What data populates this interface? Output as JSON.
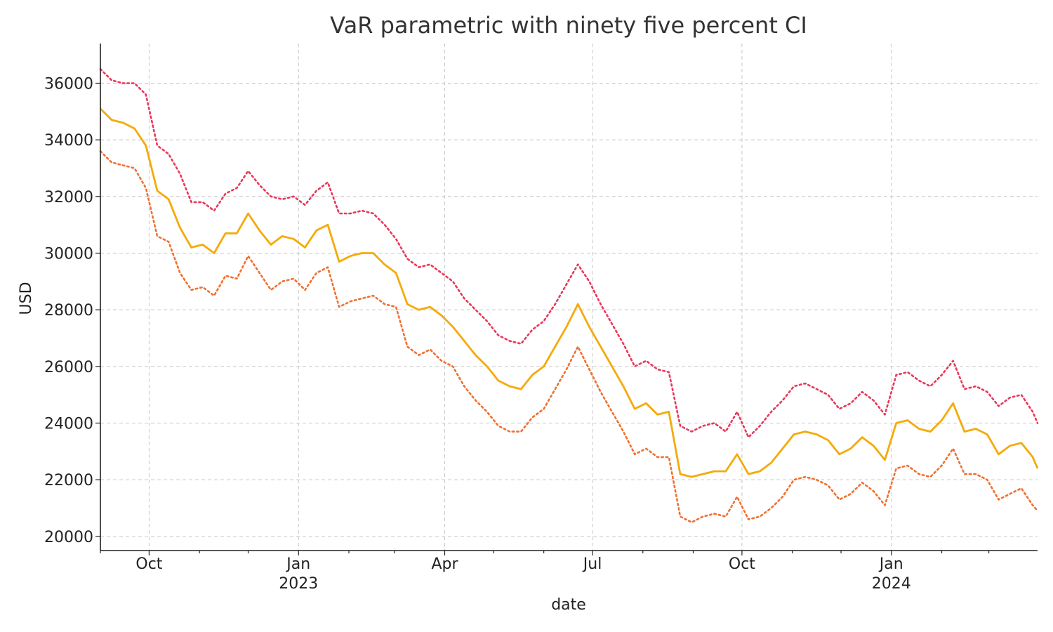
{
  "chart_data": {
    "type": "line",
    "title": "VaR parametric with ninety five percent CI",
    "xlabel": "date",
    "ylabel": "USD",
    "grid": true,
    "xlim": [
      "2022-09-01",
      "2024-03-31"
    ],
    "ylim": [
      19500,
      37400
    ],
    "y_ticks": [
      20000,
      22000,
      24000,
      26000,
      28000,
      30000,
      32000,
      34000,
      36000
    ],
    "x_ticks": [
      {
        "date": "2022-10-01",
        "label": "Oct",
        "sublabel": ""
      },
      {
        "date": "2023-01-01",
        "label": "Jan",
        "sublabel": "2023"
      },
      {
        "date": "2023-04-01",
        "label": "Apr",
        "sublabel": ""
      },
      {
        "date": "2023-07-01",
        "label": "Jul",
        "sublabel": ""
      },
      {
        "date": "2023-10-01",
        "label": "Oct",
        "sublabel": ""
      },
      {
        "date": "2024-01-01",
        "label": "Jan",
        "sublabel": "2024"
      }
    ],
    "x": [
      "2022-09-01",
      "2022-09-08",
      "2022-09-15",
      "2022-09-22",
      "2022-09-29",
      "2022-10-06",
      "2022-10-13",
      "2022-10-20",
      "2022-10-27",
      "2022-11-03",
      "2022-11-10",
      "2022-11-17",
      "2022-11-24",
      "2022-12-01",
      "2022-12-08",
      "2022-12-15",
      "2022-12-22",
      "2022-12-29",
      "2023-01-05",
      "2023-01-12",
      "2023-01-19",
      "2023-01-26",
      "2023-02-02",
      "2023-02-09",
      "2023-02-16",
      "2023-02-23",
      "2023-03-02",
      "2023-03-09",
      "2023-03-16",
      "2023-03-23",
      "2023-03-30",
      "2023-04-06",
      "2023-04-13",
      "2023-04-20",
      "2023-04-27",
      "2023-05-04",
      "2023-05-11",
      "2023-05-18",
      "2023-05-25",
      "2023-06-01",
      "2023-06-08",
      "2023-06-15",
      "2023-06-22",
      "2023-06-29",
      "2023-07-06",
      "2023-07-13",
      "2023-07-20",
      "2023-07-27",
      "2023-08-03",
      "2023-08-10",
      "2023-08-17",
      "2023-08-24",
      "2023-08-31",
      "2023-09-07",
      "2023-09-14",
      "2023-09-21",
      "2023-09-28",
      "2023-10-05",
      "2023-10-12",
      "2023-10-19",
      "2023-10-26",
      "2023-11-02",
      "2023-11-09",
      "2023-11-16",
      "2023-11-23",
      "2023-11-30",
      "2023-12-07",
      "2023-12-14",
      "2023-12-21",
      "2023-12-28",
      "2024-01-04",
      "2024-01-11",
      "2024-01-18",
      "2024-01-25",
      "2024-02-01",
      "2024-02-08",
      "2024-02-15",
      "2024-02-22",
      "2024-02-29",
      "2024-03-07",
      "2024-03-14",
      "2024-03-21",
      "2024-03-28",
      "2024-03-31"
    ],
    "series": [
      {
        "color": "#e8385a",
        "style": "dotted",
        "values": [
          36500,
          36100,
          36000,
          36000,
          35600,
          33800,
          33500,
          32800,
          31800,
          31800,
          31500,
          32100,
          32300,
          32900,
          32400,
          32000,
          31900,
          32000,
          31700,
          32200,
          32500,
          31400,
          31400,
          31500,
          31400,
          31000,
          30500,
          29800,
          29500,
          29600,
          29300,
          29000,
          28400,
          28000,
          27600,
          27100,
          26900,
          26800,
          27300,
          27600,
          28200,
          28900,
          29600,
          29000,
          28200,
          27500,
          26800,
          26000,
          26200,
          25900,
          25800,
          23900,
          23700,
          23900,
          24000,
          23700,
          24400,
          23500,
          23900,
          24400,
          24800,
          25300,
          25400,
          25200,
          25000,
          24500,
          24700,
          25100,
          24800,
          24300,
          25700,
          25800,
          25500,
          25300,
          25700,
          26200,
          25200,
          25300,
          25100,
          24600,
          24900,
          25000,
          24400,
          24000
        ]
      },
      {
        "color": "#f5aa0a",
        "style": "solid",
        "values": [
          35100,
          34700,
          34600,
          34400,
          33800,
          32200,
          31900,
          30900,
          30200,
          30300,
          30000,
          30700,
          30700,
          31400,
          30800,
          30300,
          30600,
          30500,
          30200,
          30800,
          31000,
          29700,
          29900,
          30000,
          30000,
          29600,
          29300,
          28200,
          28000,
          28100,
          27800,
          27400,
          26900,
          26400,
          26000,
          25500,
          25300,
          25200,
          25700,
          26000,
          26700,
          27400,
          28200,
          27400,
          26700,
          26000,
          25300,
          24500,
          24700,
          24300,
          24400,
          22200,
          22100,
          22200,
          22300,
          22300,
          22900,
          22200,
          22300,
          22600,
          23100,
          23600,
          23700,
          23600,
          23400,
          22900,
          23100,
          23500,
          23200,
          22700,
          24000,
          24100,
          23800,
          23700,
          24100,
          24700,
          23700,
          23800,
          23600,
          22900,
          23200,
          23300,
          22800,
          22400
        ]
      },
      {
        "color": "#f07030",
        "style": "dotted",
        "values": [
          33600,
          33200,
          33100,
          33000,
          32300,
          30600,
          30400,
          29300,
          28700,
          28800,
          28500,
          29200,
          29100,
          29900,
          29300,
          28700,
          29000,
          29100,
          28700,
          29300,
          29500,
          28100,
          28300,
          28400,
          28500,
          28200,
          28100,
          26700,
          26400,
          26600,
          26200,
          26000,
          25300,
          24800,
          24400,
          23900,
          23700,
          23700,
          24200,
          24500,
          25200,
          25900,
          26700,
          25900,
          25100,
          24400,
          23700,
          22900,
          23100,
          22800,
          22800,
          20700,
          20500,
          20700,
          20800,
          20700,
          21400,
          20600,
          20700,
          21000,
          21400,
          22000,
          22100,
          22000,
          21800,
          21300,
          21500,
          21900,
          21600,
          21100,
          22400,
          22500,
          22200,
          22100,
          22500,
          23100,
          22200,
          22200,
          22000,
          21300,
          21500,
          21700,
          21100,
          20900
        ]
      }
    ]
  }
}
